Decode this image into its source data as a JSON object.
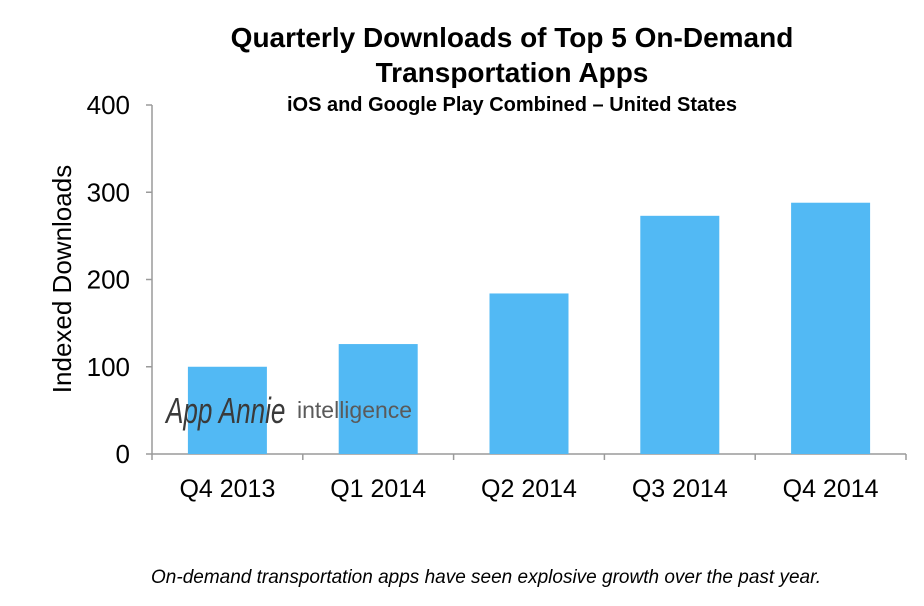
{
  "chart_data": {
    "type": "bar",
    "title_line1": "Quarterly Downloads of Top 5 On-Demand",
    "title_line2": "Transportation Apps",
    "subtitle": "iOS and Google Play Combined – United States",
    "xlabel": "",
    "ylabel": "Indexed Downloads",
    "ylim": [
      0,
      400
    ],
    "yticks": [
      0,
      100,
      200,
      300,
      400
    ],
    "categories": [
      "Q4 2013",
      "Q1 2014",
      "Q2 2014",
      "Q3 2014",
      "Q4 2014"
    ],
    "values": [
      100,
      126,
      184,
      273,
      288
    ],
    "grid": false,
    "bar_color": "#52b9f4",
    "axis_color": "#9a9a9a"
  },
  "watermark": {
    "brand": "App Annie",
    "product": "intelligence"
  },
  "caption": "On-demand transportation apps have seen explosive growth over the past year."
}
